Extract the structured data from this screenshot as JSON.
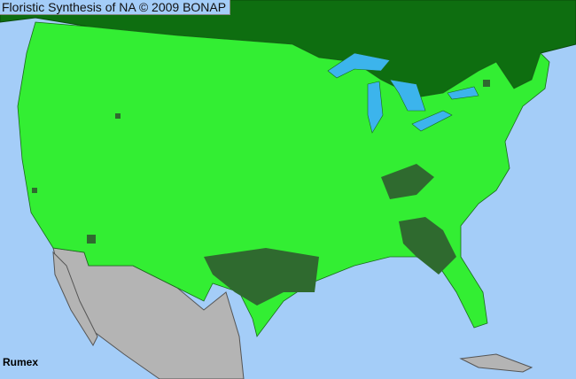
{
  "title": "Floristic Synthesis of NA © 2009 BONAP",
  "taxon_label": "Rumex",
  "colors": {
    "ocean": "#a4cdf8",
    "canada": "#0e6e10",
    "us_present": "#33ee33",
    "county_dark": "#2f6a2f",
    "mexico": "#b4b4b4",
    "lakes": "#3cb4ec"
  }
}
